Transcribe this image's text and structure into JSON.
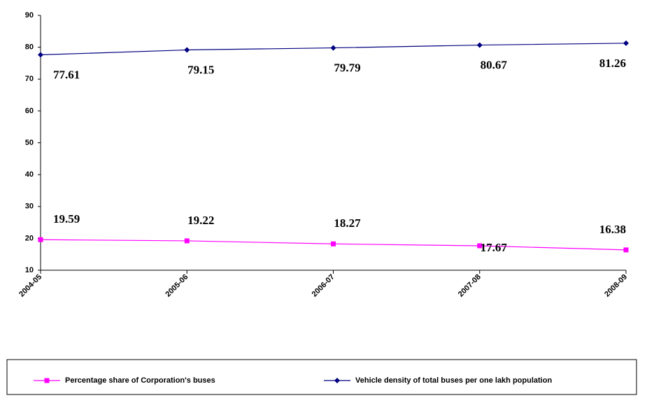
{
  "chart_data": {
    "type": "line",
    "categories": [
      "2004-05",
      "2005-06",
      "2006-07",
      "2007-08",
      "2008-09"
    ],
    "series": [
      {
        "name": "Percentage share of Corporation's buses",
        "color": "#ff00ff",
        "marker": "square",
        "values": [
          19.59,
          19.22,
          18.27,
          17.67,
          16.38
        ]
      },
      {
        "name": "Vehicle density of total buses per one lakh population",
        "color": "#000080",
        "marker": "diamond",
        "values": [
          77.61,
          79.15,
          79.79,
          80.67,
          81.26
        ]
      }
    ],
    "ylim": [
      10,
      90
    ],
    "yticks": [
      10,
      20,
      30,
      40,
      50,
      60,
      70,
      80,
      90
    ],
    "grid": false,
    "legend": "bottom"
  }
}
